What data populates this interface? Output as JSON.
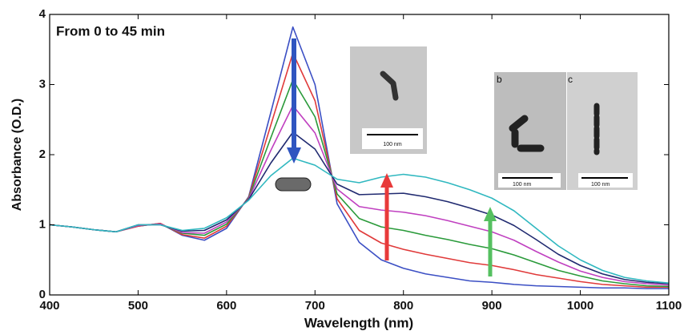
{
  "chart_data": {
    "type": "line",
    "xlabel": "Wavelength (nm)",
    "ylabel": "Absorbance (O.D.)",
    "annotations": {
      "time": "From 0 to 45 min",
      "inset_b": "b",
      "inset_c": "c",
      "scale_a": "100 nm",
      "scale_b": "100 nm",
      "scale_c": "100 nm"
    },
    "xlim": [
      400,
      1100
    ],
    "xticks": [
      400,
      500,
      600,
      700,
      800,
      900,
      1000,
      1100
    ],
    "ylim": [
      0,
      4
    ],
    "yticks": [
      0,
      1,
      2,
      3,
      4
    ],
    "x": [
      400,
      425,
      450,
      475,
      500,
      525,
      550,
      575,
      600,
      625,
      650,
      675,
      700,
      725,
      750,
      775,
      800,
      825,
      850,
      875,
      900,
      925,
      950,
      975,
      1000,
      1025,
      1050,
      1075,
      1100
    ],
    "series": [
      {
        "color": "#3b4fc4",
        "values": [
          1.0,
          0.97,
          0.93,
          0.9,
          0.98,
          1.02,
          0.85,
          0.78,
          0.95,
          1.4,
          2.6,
          3.82,
          3.0,
          1.3,
          0.75,
          0.5,
          0.38,
          0.3,
          0.25,
          0.2,
          0.18,
          0.15,
          0.13,
          0.12,
          0.11,
          0.1,
          0.1,
          0.09,
          0.09
        ]
      },
      {
        "color": "#e03a3a",
        "values": [
          1.0,
          0.97,
          0.93,
          0.9,
          0.98,
          1.02,
          0.86,
          0.81,
          0.98,
          1.39,
          2.42,
          3.45,
          2.77,
          1.37,
          0.92,
          0.74,
          0.65,
          0.58,
          0.52,
          0.46,
          0.42,
          0.36,
          0.29,
          0.24,
          0.19,
          0.15,
          0.13,
          0.11,
          0.11
        ]
      },
      {
        "color": "#2a9a3a",
        "values": [
          1.0,
          0.97,
          0.93,
          0.9,
          0.99,
          1.01,
          0.88,
          0.85,
          1.01,
          1.38,
          2.24,
          3.07,
          2.54,
          1.44,
          1.09,
          0.97,
          0.92,
          0.85,
          0.79,
          0.72,
          0.66,
          0.57,
          0.46,
          0.35,
          0.27,
          0.2,
          0.16,
          0.13,
          0.12
        ]
      },
      {
        "color": "#c040c0",
        "values": [
          1.0,
          0.97,
          0.93,
          0.9,
          0.99,
          1.01,
          0.89,
          0.88,
          1.04,
          1.37,
          2.06,
          2.7,
          2.31,
          1.51,
          1.26,
          1.21,
          1.18,
          1.13,
          1.06,
          0.98,
          0.9,
          0.78,
          0.62,
          0.47,
          0.34,
          0.25,
          0.19,
          0.16,
          0.14
        ]
      },
      {
        "color": "#202a70",
        "values": [
          1.0,
          0.97,
          0.93,
          0.9,
          1.0,
          1.0,
          0.91,
          0.92,
          1.07,
          1.36,
          1.88,
          2.32,
          2.08,
          1.58,
          1.43,
          1.44,
          1.45,
          1.4,
          1.33,
          1.24,
          1.14,
          0.99,
          0.79,
          0.58,
          0.42,
          0.3,
          0.22,
          0.18,
          0.16
        ]
      },
      {
        "color": "#30b8c0",
        "values": [
          1.0,
          0.97,
          0.93,
          0.9,
          1.0,
          1.0,
          0.92,
          0.95,
          1.1,
          1.35,
          1.7,
          1.95,
          1.85,
          1.65,
          1.6,
          1.68,
          1.72,
          1.68,
          1.6,
          1.5,
          1.38,
          1.2,
          0.95,
          0.7,
          0.5,
          0.35,
          0.25,
          0.2,
          0.17
        ]
      }
    ]
  }
}
